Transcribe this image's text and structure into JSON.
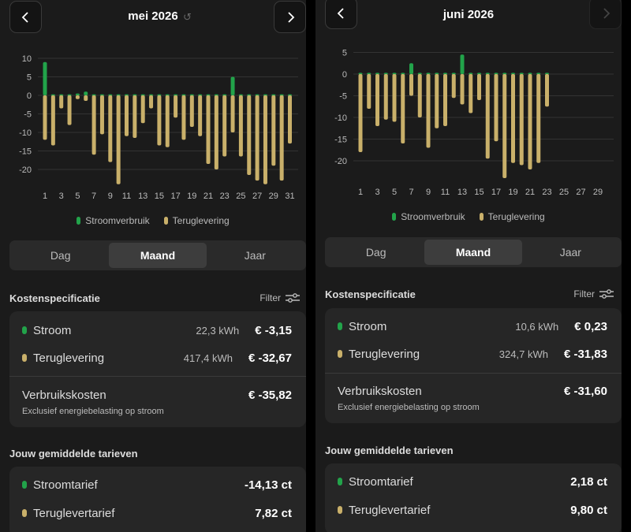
{
  "panels": [
    {
      "id": "left",
      "month_title": "mei 2026",
      "has_reset": true,
      "next_disabled": false,
      "chart_data": {
        "type": "bar",
        "ylim": [
          -25,
          12
        ],
        "yticks": [
          10,
          5,
          0,
          -5,
          -10,
          -15,
          -20
        ],
        "x_labels": [
          "1",
          "3",
          "5",
          "7",
          "9",
          "11",
          "13",
          "15",
          "17",
          "19",
          "21",
          "23",
          "25",
          "27",
          "29",
          "31"
        ],
        "categories": [
          1,
          2,
          3,
          4,
          5,
          6,
          7,
          8,
          9,
          10,
          11,
          12,
          13,
          14,
          15,
          16,
          17,
          18,
          19,
          20,
          21,
          22,
          23,
          24,
          25,
          26,
          27,
          28,
          29,
          30,
          31
        ],
        "series": [
          {
            "name": "Stroomverbruik",
            "color": "#22a34a",
            "values": [
              9.0,
              0.3,
              0.3,
              0.3,
              0.5,
              1.0,
              0.3,
              0.3,
              0.3,
              0.3,
              0.3,
              0.3,
              0.3,
              0.3,
              0.3,
              0.3,
              0.3,
              0.3,
              0.3,
              0.3,
              0.3,
              0.3,
              0.3,
              5.0,
              0.3,
              0.3,
              0.3,
              0.3,
              0.3,
              0.3,
              0.3
            ]
          },
          {
            "name": "Teruglevering",
            "color": "#c9b06a",
            "values": [
              -12,
              -13.5,
              -3.5,
              -8,
              -1,
              -1.5,
              -16,
              -10.5,
              -18,
              -24,
              -11,
              -11.5,
              -7.5,
              -3.5,
              -13.5,
              -14,
              -6,
              -12,
              -8.5,
              -11,
              -18.5,
              -20,
              -16.5,
              -10,
              -16.5,
              -21.5,
              -23,
              -24,
              -19,
              -23,
              -13
            ]
          }
        ]
      },
      "tabs": [
        "Dag",
        "Maand",
        "Jaar"
      ],
      "active_tab": 1,
      "cost_title": "Kostenspecificatie",
      "filter_label": "Filter",
      "cost_rows": [
        {
          "label": "Stroom",
          "sub": "22,3 kWh",
          "amount": "€ -3,15",
          "color": "#22a34a"
        },
        {
          "label": "Teruglevering",
          "sub": "417,4 kWh",
          "amount": "€ -32,67",
          "color": "#c9b06a"
        }
      ],
      "total_label": "Verbruikskosten",
      "total_amount": "€ -35,82",
      "total_note": "Exclusief energiebelasting op stroom",
      "tariff_title": "Jouw gemiddelde tarieven",
      "tariff_rows": [
        {
          "label": "Stroomtarief",
          "amount": "-14,13 ct",
          "color": "#22a34a"
        },
        {
          "label": "Teruglevertarief",
          "amount": "7,82 ct",
          "color": "#c9b06a"
        }
      ]
    },
    {
      "id": "right",
      "month_title": "juni 2026",
      "has_reset": false,
      "next_disabled": true,
      "chart_data": {
        "type": "bar",
        "ylim": [
          -25,
          7
        ],
        "yticks": [
          5,
          0,
          -5,
          -10,
          -15,
          -20
        ],
        "x_labels": [
          "1",
          "3",
          "5",
          "7",
          "9",
          "11",
          "13",
          "15",
          "17",
          "19",
          "21",
          "23",
          "25",
          "27",
          "29"
        ],
        "categories": [
          1,
          2,
          3,
          4,
          5,
          6,
          7,
          8,
          9,
          10,
          11,
          12,
          13,
          14,
          15,
          16,
          17,
          18,
          19,
          20,
          21,
          22,
          23,
          24,
          25,
          26,
          27,
          28,
          29,
          30
        ],
        "series": [
          {
            "name": "Stroomverbruik",
            "color": "#22a34a",
            "values": [
              0.3,
              0.3,
              0.3,
              0.3,
              0.3,
              0.3,
              2.5,
              0.3,
              0.3,
              0.3,
              0.3,
              0.3,
              4.5,
              0.3,
              0.3,
              0.3,
              0.3,
              0.3,
              0.3,
              0.3,
              0.3,
              0.3,
              0.3,
              null,
              null,
              null,
              null,
              null,
              null,
              null
            ]
          },
          {
            "name": "Teruglevering",
            "color": "#c9b06a",
            "values": [
              -18,
              -8,
              -12,
              -10.5,
              -11,
              -16,
              -5,
              -10,
              -17,
              -12.5,
              -12,
              -5.5,
              -7,
              -9,
              -6,
              -19.5,
              -15.5,
              -24,
              -20.5,
              -21,
              -22,
              -20.5,
              -7.5,
              null,
              null,
              null,
              null,
              null,
              null,
              null
            ]
          }
        ]
      },
      "tabs": [
        "Dag",
        "Maand",
        "Jaar"
      ],
      "active_tab": 1,
      "cost_title": "Kostenspecificatie",
      "filter_label": "Filter",
      "cost_rows": [
        {
          "label": "Stroom",
          "sub": "10,6 kWh",
          "amount": "€ 0,23",
          "color": "#22a34a"
        },
        {
          "label": "Teruglevering",
          "sub": "324,7 kWh",
          "amount": "€ -31,83",
          "color": "#c9b06a"
        }
      ],
      "total_label": "Verbruikskosten",
      "total_amount": "€ -31,60",
      "total_note": "Exclusief energiebelasting op stroom",
      "tariff_title": "Jouw gemiddelde tarieven",
      "tariff_rows": [
        {
          "label": "Stroomtarief",
          "amount": "2,18 ct",
          "color": "#22a34a"
        },
        {
          "label": "Teruglevertarief",
          "amount": "9,80 ct",
          "color": "#c9b06a"
        }
      ]
    }
  ]
}
